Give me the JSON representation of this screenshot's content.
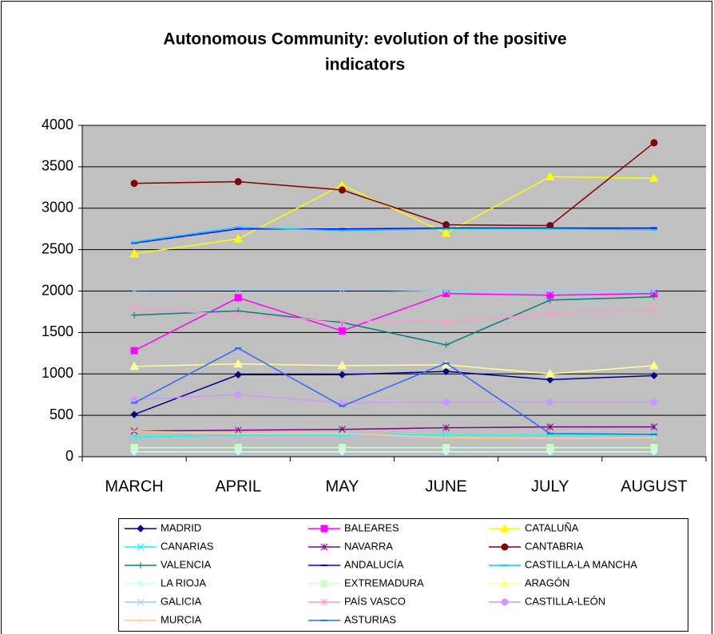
{
  "chart_data": {
    "type": "line",
    "title": [
      "Autonomous Community: evolution of the positive",
      "indicators"
    ],
    "categories": [
      "MARCH",
      "APRIL",
      "MAY",
      "JUNE",
      "JULY",
      "AUGUST"
    ],
    "ylim": [
      0,
      4000
    ],
    "yticks": [
      0,
      500,
      1000,
      1500,
      2000,
      2500,
      3000,
      3500,
      4000
    ],
    "grid": true,
    "series": [
      {
        "name": "MADRID",
        "color": "#000080",
        "marker": "diamond",
        "values": [
          510,
          990,
          990,
          1030,
          930,
          980
        ]
      },
      {
        "name": "BALEARES",
        "color": "#ff00ff",
        "marker": "square",
        "values": [
          1280,
          1920,
          1520,
          1970,
          1950,
          1970
        ]
      },
      {
        "name": "CATALUÑA",
        "color": "#ffff00",
        "marker": "triangle",
        "values": [
          2450,
          2630,
          3280,
          2700,
          3380,
          3360
        ]
      },
      {
        "name": "CANARIAS",
        "color": "#00ffff",
        "marker": "x",
        "values": [
          240,
          260,
          260,
          260,
          260,
          270
        ]
      },
      {
        "name": "NAVARRA",
        "color": "#800080",
        "marker": "star",
        "values": [
          310,
          320,
          330,
          350,
          360,
          360
        ]
      },
      {
        "name": "CANTABRIA",
        "color": "#800000",
        "marker": "circle",
        "values": [
          3300,
          3320,
          3220,
          2800,
          2790,
          3790
        ]
      },
      {
        "name": "VALENCIA",
        "color": "#008080",
        "marker": "plus",
        "values": [
          1710,
          1760,
          1620,
          1350,
          1890,
          1930
        ]
      },
      {
        "name": "ANDALUCÍA",
        "color": "#0000ff",
        "marker": "dash",
        "values": [
          2580,
          2750,
          2750,
          2760,
          2760,
          2760
        ]
      },
      {
        "name": "CASTILLA-LA MANCHA",
        "color": "#00ccff",
        "marker": "dash",
        "values": [
          2590,
          2770,
          2730,
          2750,
          2750,
          2740
        ]
      },
      {
        "name": "LA RIOJA",
        "color": "#ccffff",
        "marker": "diamond",
        "values": [
          60,
          60,
          60,
          60,
          60,
          60
        ]
      },
      {
        "name": "EXTREMADURA",
        "color": "#ccffcc",
        "marker": "square",
        "values": [
          110,
          110,
          110,
          110,
          110,
          110
        ]
      },
      {
        "name": "ARAGÓN",
        "color": "#ffff99",
        "marker": "triangle",
        "values": [
          1090,
          1120,
          1100,
          1110,
          1000,
          1100
        ]
      },
      {
        "name": "GALICIA",
        "color": "#99ccff",
        "marker": "x",
        "values": [
          2010,
          2020,
          2020,
          2000,
          2000,
          2000
        ]
      },
      {
        "name": "PAÍS VASCO",
        "color": "#ff99cc",
        "marker": "star",
        "values": [
          1790,
          1710,
          1640,
          1630,
          1720,
          1780
        ]
      },
      {
        "name": "CASTILLA-LEÓN",
        "color": "#cc99ff",
        "marker": "circle",
        "values": [
          690,
          750,
          650,
          660,
          660,
          660
        ]
      },
      {
        "name": "MURCIA",
        "color": "#ffcc99",
        "marker": "plus",
        "values": [
          310,
          280,
          280,
          230,
          220,
          230
        ]
      },
      {
        "name": "ASTURIAS",
        "color": "#3366ff",
        "marker": "dash",
        "values": [
          650,
          1310,
          610,
          1130,
          280,
          270
        ]
      }
    ]
  }
}
